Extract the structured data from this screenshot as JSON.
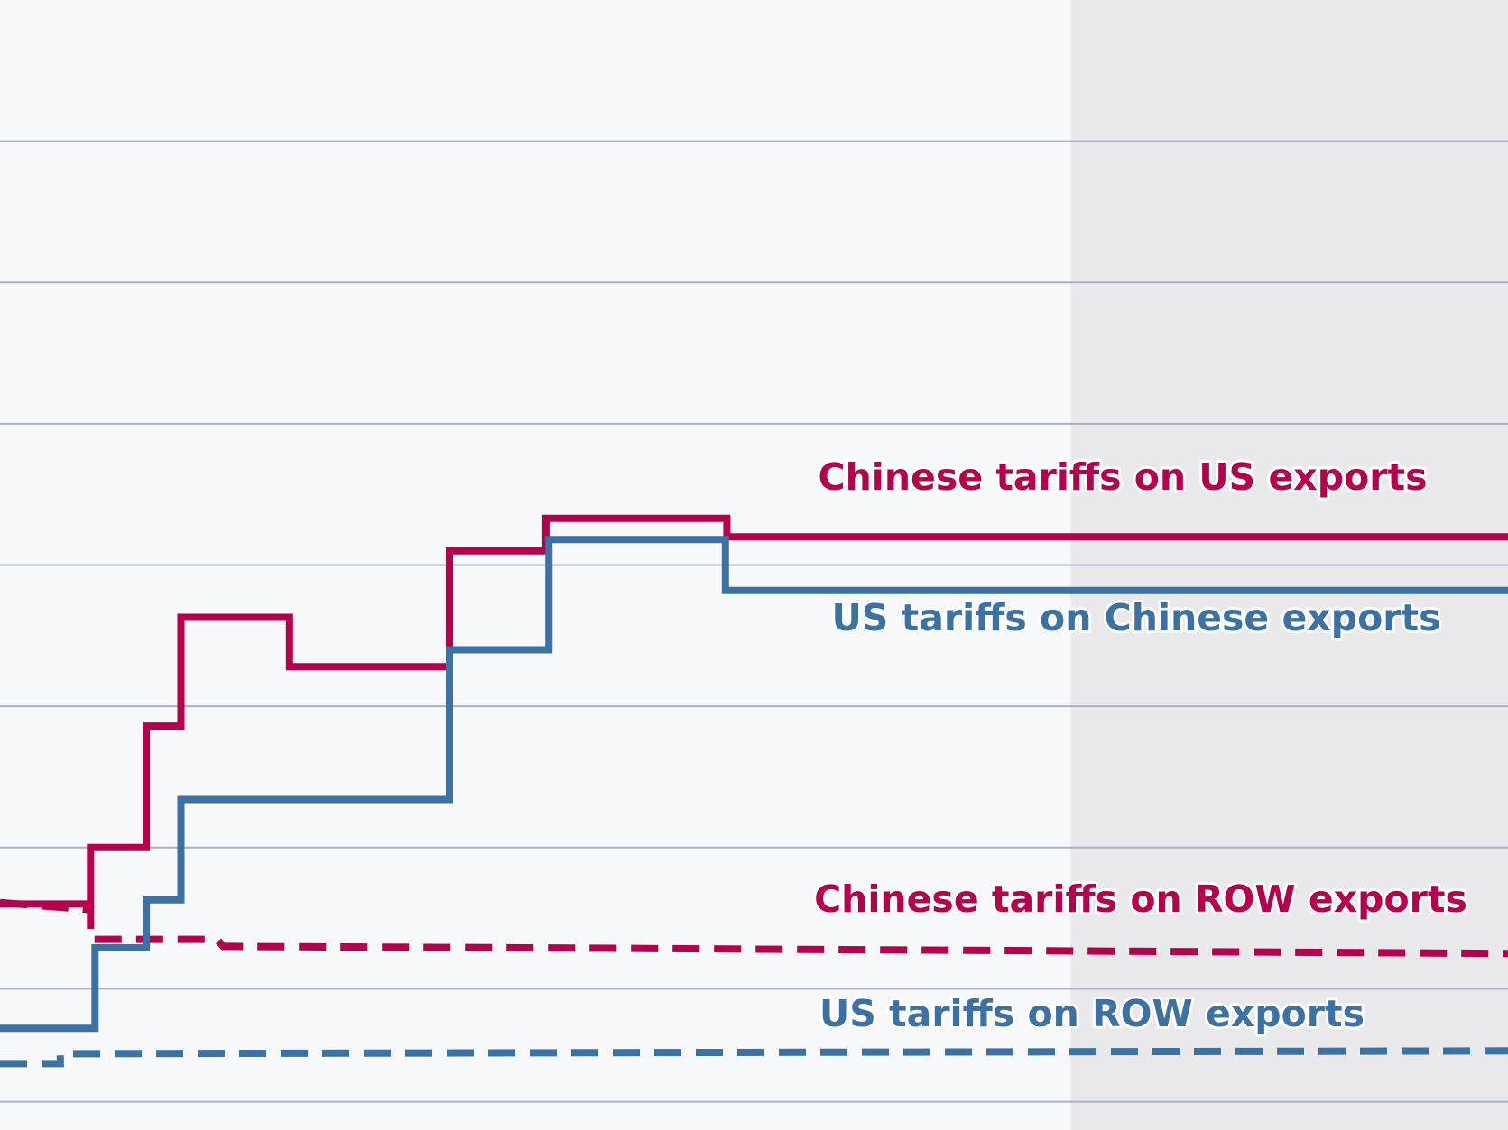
{
  "chart_data": {
    "type": "line",
    "step": true,
    "title": "",
    "xlabel": "",
    "ylabel": "",
    "ylim": [
      0,
      80
    ],
    "xlim": [
      0,
      100
    ],
    "grid": true,
    "colors": {
      "china": "#b5004c",
      "us": "#3c72a3",
      "gridline": "#a3b3c7",
      "background": "#f7f8fa",
      "shaded": "#e9e9eb"
    },
    "gridlines": [
      2,
      10,
      20,
      30,
      40,
      50,
      60,
      70
    ],
    "shaded_region": [
      71,
      100
    ],
    "series": [
      {
        "name": "Chinese tariffs on US exports",
        "key": "china_on_us",
        "color": "#b5004c",
        "dashed": false,
        "points": [
          [
            0,
            16
          ],
          [
            6,
            16
          ],
          [
            6,
            20
          ],
          [
            9.7,
            20
          ],
          [
            9.7,
            28.6
          ],
          [
            12,
            28.6
          ],
          [
            12,
            36.3
          ],
          [
            19.2,
            36.3
          ],
          [
            19.2,
            32.8
          ],
          [
            29.8,
            32.8
          ],
          [
            29.8,
            41
          ],
          [
            36.2,
            41
          ],
          [
            36.2,
            43.3
          ],
          [
            48.2,
            43.3
          ],
          [
            48.2,
            42
          ],
          [
            100,
            42
          ]
        ]
      },
      {
        "name": "US tariffs on Chinese exports",
        "key": "us_on_china",
        "color": "#3c72a3",
        "dashed": false,
        "points": [
          [
            0,
            7.2
          ],
          [
            6.3,
            7.2
          ],
          [
            6.3,
            12.9
          ],
          [
            9.7,
            12.9
          ],
          [
            9.7,
            16.3
          ],
          [
            12,
            16.3
          ],
          [
            12,
            23.4
          ],
          [
            29.8,
            23.4
          ],
          [
            29.8,
            34
          ],
          [
            36.4,
            34
          ],
          [
            36.4,
            41.8
          ],
          [
            48.1,
            41.8
          ],
          [
            48.1,
            38.2
          ],
          [
            100,
            38.2
          ]
        ]
      },
      {
        "name": "Chinese tariffs on ROW exports",
        "key": "china_on_row",
        "color": "#b5004c",
        "dashed": true,
        "points": [
          [
            0,
            16.1
          ],
          [
            6,
            15.6
          ],
          [
            6,
            13.5
          ],
          [
            14.4,
            13.5
          ],
          [
            14.8,
            13
          ],
          [
            35,
            12.9
          ],
          [
            100,
            12.5
          ]
        ]
      },
      {
        "name": "US tariffs on ROW exports",
        "key": "us_on_row",
        "color": "#3c72a3",
        "dashed": true,
        "points": [
          [
            0,
            4.7
          ],
          [
            4,
            4.7
          ],
          [
            4,
            5.4
          ],
          [
            100,
            5.6
          ]
        ]
      }
    ]
  }
}
